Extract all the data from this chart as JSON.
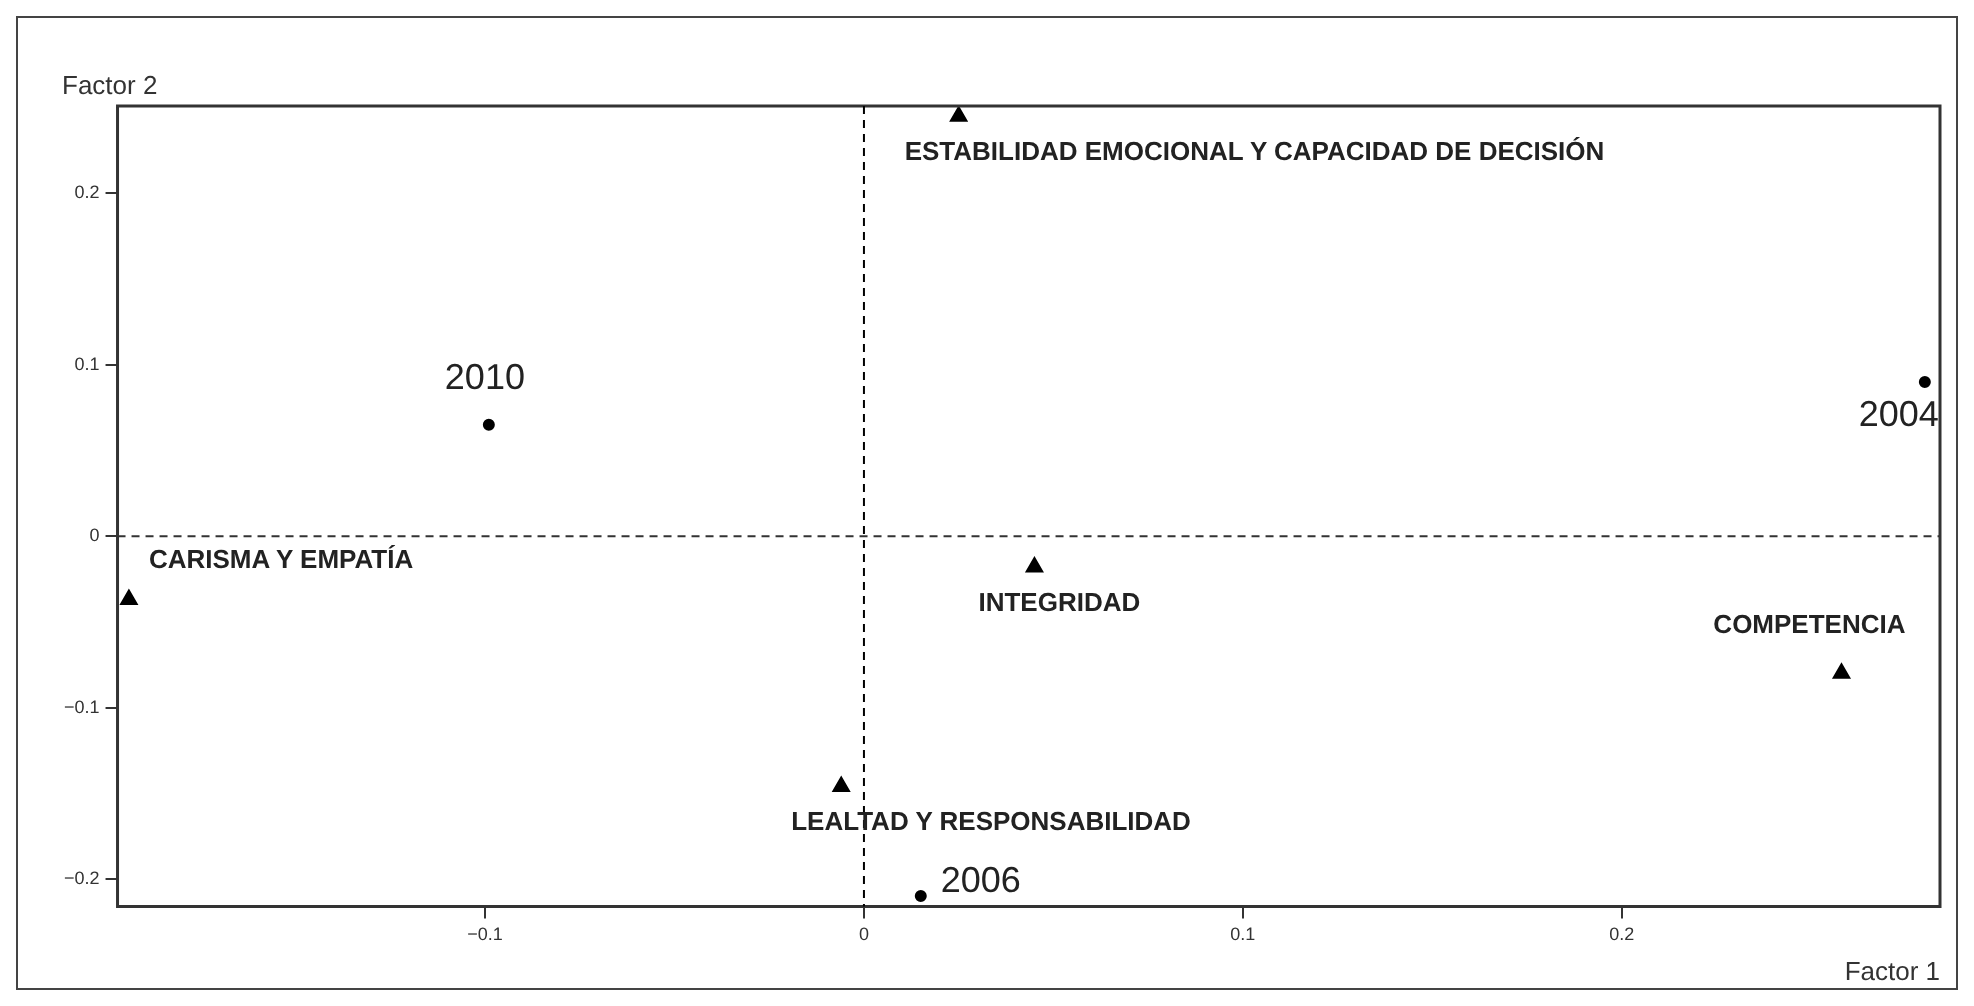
{
  "chart_data": {
    "type": "scatter",
    "xlabel": "Factor 1",
    "ylabel": "Factor 2",
    "series": [
      {
        "color": "#000000",
        "marker": "circle",
        "x": [
          -0.099,
          0.28,
          0.015
        ],
        "values": [
          0.065,
          0.09,
          -0.21
        ]
      },
      {
        "color": "#000000",
        "marker": "triangle",
        "x": [
          0.025,
          -0.194,
          0.045,
          0.258,
          -0.006
        ],
        "values": [
          0.245,
          -0.037,
          -0.018,
          -0.08,
          -0.146
        ]
      }
    ],
    "annotations": [
      {
        "text": "2010",
        "x": -0.099,
        "y": 0.065
      },
      {
        "text": "2004",
        "x": 0.28,
        "y": 0.09
      },
      {
        "text": "2006",
        "x": 0.015,
        "y": -0.21
      },
      {
        "text": "ESTABILIDAD EMOCIONAL Y CAPACIDAD DE DECISIÓN",
        "x": 0.025,
        "y": 0.245
      },
      {
        "text": "CARISMA Y EMPATÍA",
        "x": -0.194,
        "y": -0.037
      },
      {
        "text": "INTEGRIDAD",
        "x": 0.045,
        "y": -0.018
      },
      {
        "text": "COMPETENCIA",
        "x": 0.258,
        "y": -0.08
      },
      {
        "text": "LEALTAD Y RESPONSABILIDAD",
        "x": -0.006,
        "y": -0.146
      }
    ],
    "ref_lines": [
      {
        "axis": "x",
        "value": 0,
        "line_style": "dashed",
        "color": "#000000"
      },
      {
        "axis": "y",
        "value": 0,
        "line_style": "dashed",
        "color": "#333333"
      }
    ],
    "xlim": [
      -0.197,
      0.284
    ],
    "ylim": [
      -0.216,
      0.251
    ],
    "xticks": [
      {
        "value": -0.1,
        "label": "−0.1"
      },
      0,
      0.1,
      0.2
    ],
    "yticks": [
      {
        "value": -0.2,
        "label": "−0.2"
      },
      {
        "value": -0.1,
        "label": "−0.1"
      },
      0,
      0.1,
      0.2
    ],
    "grid": false,
    "legend": false
  }
}
